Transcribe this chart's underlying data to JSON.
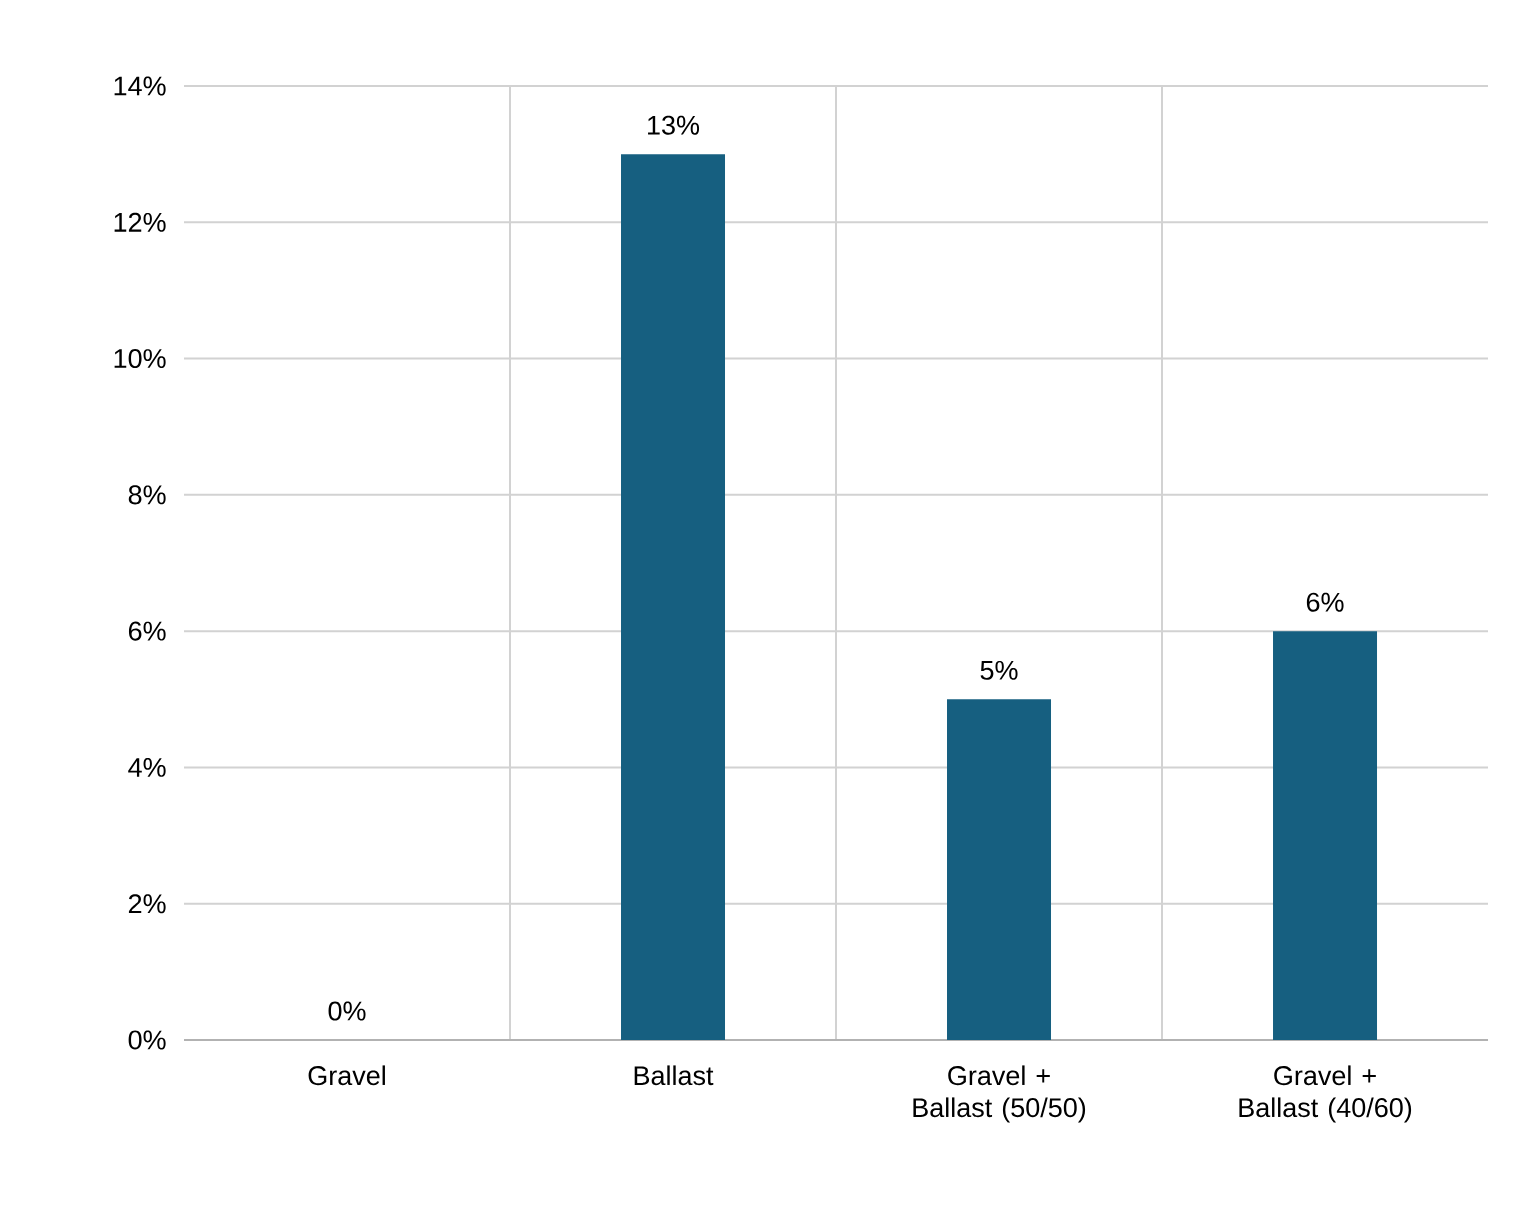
{
  "chart_data": {
    "type": "bar",
    "categories": [
      "Gravel",
      "Ballast",
      "Gravel + Ballast (50/50)",
      "Gravel + Ballast (40/60)"
    ],
    "values": [
      0,
      13,
      5,
      6
    ],
    "color": "#165f80",
    "value_labels": [
      "0%",
      "13%",
      "5%",
      "6%"
    ],
    "ylim": [
      0,
      14
    ],
    "yticks": [
      {
        "value": 0,
        "label": "0%"
      },
      {
        "value": 2,
        "label": "2%"
      },
      {
        "value": 4,
        "label": "4%"
      },
      {
        "value": 6,
        "label": "6%"
      },
      {
        "value": 8,
        "label": "8%"
      },
      {
        "value": 10,
        "label": "10%"
      },
      {
        "value": 12,
        "label": "12%"
      },
      {
        "value": 14,
        "label": "14%"
      }
    ],
    "grid": true
  }
}
